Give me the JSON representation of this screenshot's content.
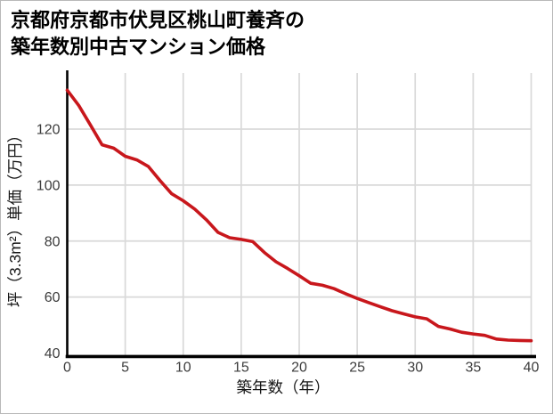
{
  "title": {
    "line1": "京都府京都市伏見区桃山町養斉の",
    "line2": "築年数別中古マンション価格"
  },
  "chart_data": {
    "type": "line",
    "title": "京都府京都市伏見区桃山町養斉の築年数別中古マンション価格",
    "xlabel": "築年数（年）",
    "ylabel": "坪（3.3m²）単価（万円）",
    "x": [
      0,
      1,
      2,
      3,
      4,
      5,
      6,
      7,
      8,
      9,
      10,
      11,
      12,
      13,
      14,
      15,
      16,
      17,
      18,
      19,
      20,
      21,
      22,
      23,
      24,
      25,
      26,
      27,
      28,
      29,
      30,
      31,
      32,
      33,
      34,
      35,
      36,
      37,
      38,
      39,
      40
    ],
    "values": [
      133.9,
      128.4,
      121.5,
      114.4,
      113.2,
      110.3,
      109.0,
      106.6,
      101.6,
      96.9,
      94.4,
      91.4,
      87.6,
      83.1,
      81.2,
      80.6,
      79.8,
      75.9,
      72.6,
      70.2,
      67.6,
      64.9,
      64.2,
      63.0,
      61.2,
      59.5,
      58.0,
      56.5,
      55.1,
      54.0,
      52.9,
      52.2,
      49.5,
      48.6,
      47.4,
      46.8,
      46.3,
      45.0,
      44.6,
      44.5,
      44.4
    ],
    "x_ticks": [
      0,
      5,
      10,
      15,
      20,
      25,
      30,
      35,
      40
    ],
    "y_ticks": [
      40,
      60,
      80,
      100,
      120
    ],
    "xlim": [
      0,
      40
    ],
    "ylim": [
      40,
      140
    ],
    "grid": true,
    "legend": false,
    "line_color": "#c8171c",
    "grid_color": "#d9d9d9",
    "axis_color": "#000000",
    "tick_label_color": "#3c3c3c"
  }
}
